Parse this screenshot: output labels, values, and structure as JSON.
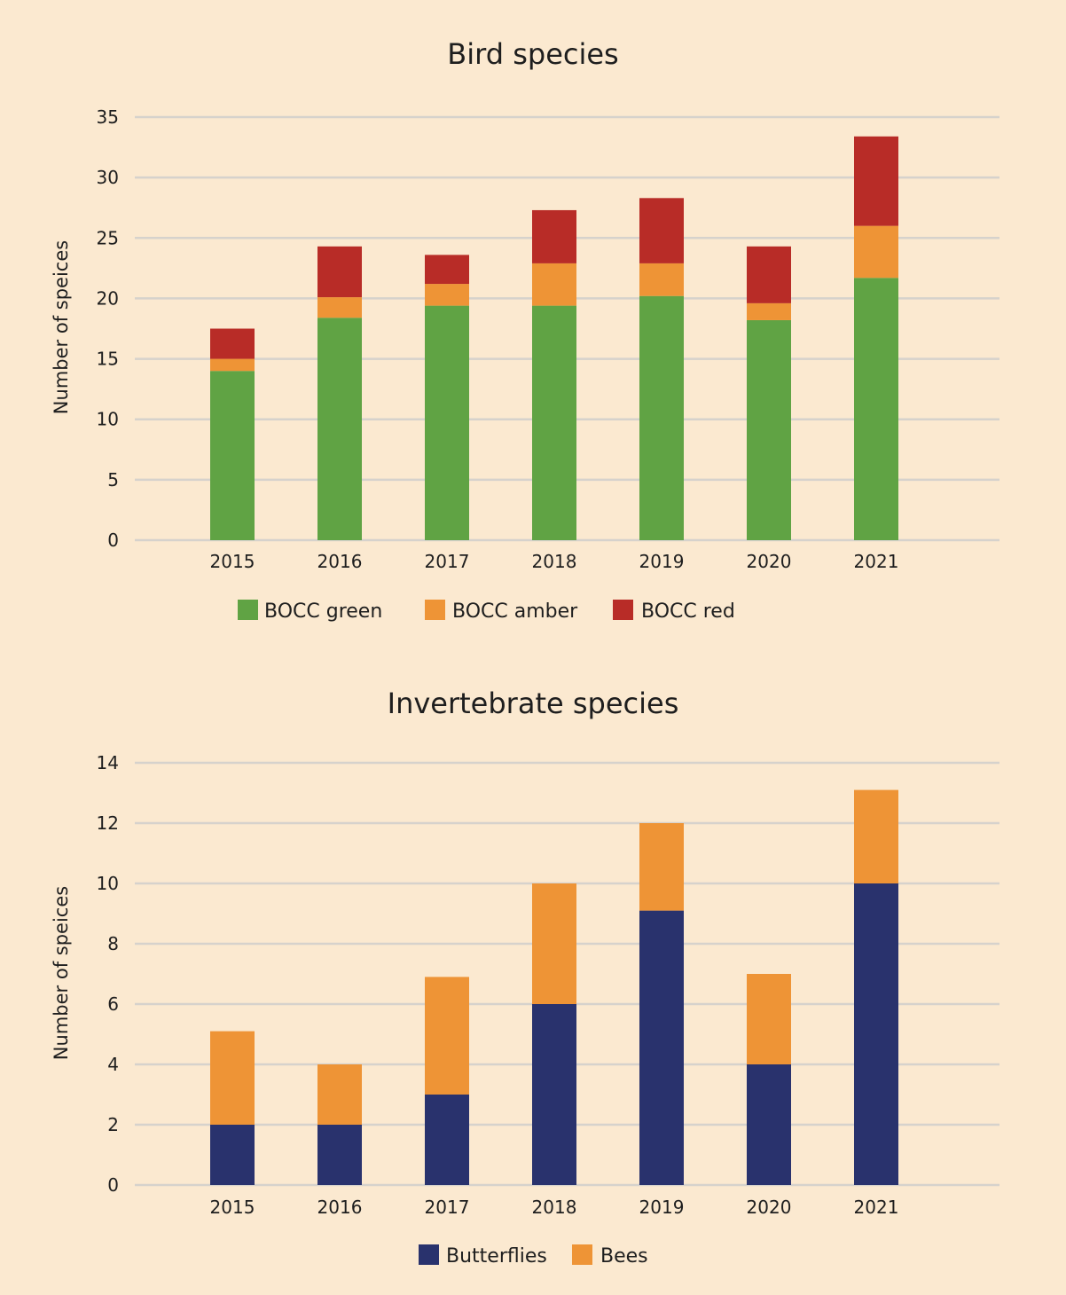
{
  "chart_data": [
    {
      "type": "bar",
      "stacked": true,
      "title": "Bird species",
      "ylabel": "Number of speices",
      "xlabel": "",
      "categories": [
        "2015",
        "2016",
        "2017",
        "2018",
        "2019",
        "2020",
        "2021"
      ],
      "ylim": [
        0,
        35
      ],
      "yticks": [
        0,
        5,
        10,
        15,
        20,
        25,
        30,
        35
      ],
      "grid": true,
      "legend_position": "bottom",
      "series": [
        {
          "name": "BOCC green",
          "color": "#60a344",
          "values": [
            14,
            18.4,
            19.4,
            19.4,
            20.2,
            18.2,
            21.7
          ]
        },
        {
          "name": "BOCC amber",
          "color": "#ee9436",
          "values": [
            1,
            1.7,
            1.8,
            3.5,
            2.7,
            1.4,
            4.3
          ]
        },
        {
          "name": "BOCC red",
          "color": "#b82c27",
          "values": [
            2.5,
            4.2,
            2.4,
            4.4,
            5.4,
            4.7,
            7.4
          ]
        }
      ]
    },
    {
      "type": "bar",
      "stacked": true,
      "title": "Invertebrate species",
      "ylabel": "Number of speices",
      "xlabel": "",
      "categories": [
        "2015",
        "2016",
        "2017",
        "2018",
        "2019",
        "2020",
        "2021"
      ],
      "ylim": [
        0,
        14
      ],
      "yticks": [
        0,
        2,
        4,
        6,
        8,
        10,
        12,
        14
      ],
      "grid": true,
      "legend_position": "bottom",
      "series": [
        {
          "name": "Butterflies",
          "color": "#29326d",
          "values": [
            2,
            2,
            3,
            6,
            9.1,
            4,
            10
          ]
        },
        {
          "name": "Bees",
          "color": "#ee9436",
          "values": [
            3.1,
            2,
            3.9,
            4,
            2.9,
            3,
            3.1
          ]
        }
      ]
    }
  ],
  "style": {
    "background": "#fbe9d0",
    "grid_color": "#d6d2cc",
    "text_color": "#1e1e1e"
  }
}
